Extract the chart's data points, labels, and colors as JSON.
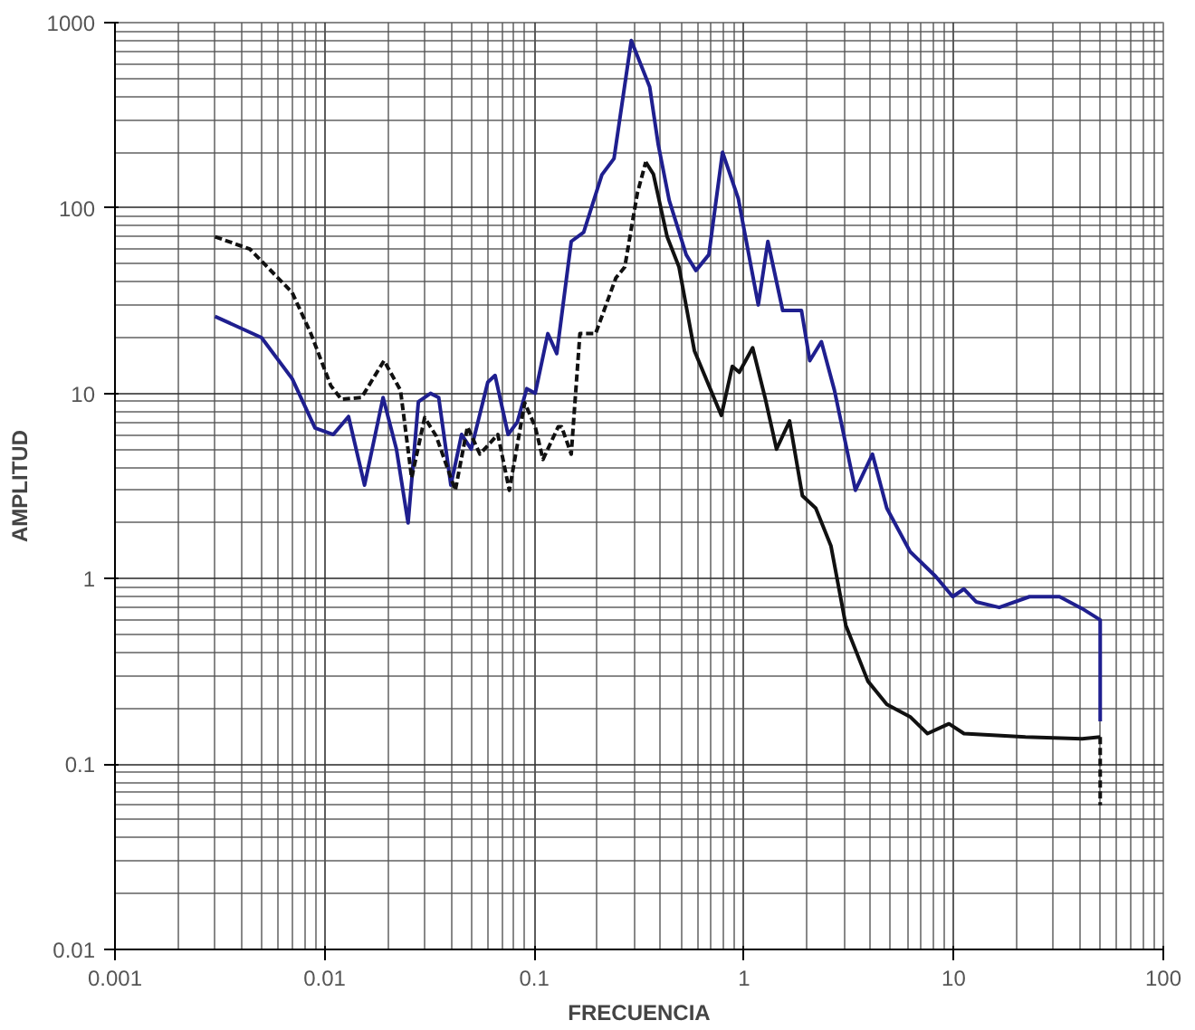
{
  "chart_data": {
    "type": "line",
    "xlabel": "FRECUENCIA",
    "ylabel": "AMPLITUD",
    "log": "xy",
    "grid": true,
    "xlim": [
      0.001,
      100
    ],
    "ylim": [
      0.01,
      1000
    ],
    "xticks": [
      0.001,
      0.01,
      0.1,
      1,
      10,
      100
    ],
    "yticks": [
      0.01,
      0.1,
      1,
      10,
      100,
      1000
    ],
    "series": [
      {
        "color": "#1f1f8f",
        "line_style": "solid",
        "x": [
          0.003,
          0.005,
          0.007,
          0.009,
          0.011,
          0.013,
          0.0155,
          0.019,
          0.022,
          0.025,
          0.028,
          0.032,
          0.035,
          0.04,
          0.045,
          0.05,
          0.06,
          0.065,
          0.075,
          0.083,
          0.092,
          0.101,
          0.116,
          0.128,
          0.15,
          0.172,
          0.21,
          0.24,
          0.29,
          0.355,
          0.39,
          0.44,
          0.53,
          0.59,
          0.68,
          0.79,
          0.94,
          1.17,
          1.3,
          1.53,
          1.88,
          2.06,
          2.34,
          2.7,
          3.4,
          4.1,
          4.8,
          6.2,
          8.2,
          9.9,
          11.2,
          12.8,
          16.5,
          23,
          32,
          41,
          50,
          50
        ],
        "values": [
          26,
          20,
          12,
          6.5,
          6,
          7.5,
          3.2,
          9.5,
          5,
          2,
          9,
          10,
          9.5,
          3.2,
          6,
          5,
          11.5,
          12.5,
          6,
          7,
          10.6,
          10,
          21,
          16.4,
          66,
          74,
          151,
          185,
          800,
          450,
          220,
          110,
          56,
          46,
          56,
          200,
          112,
          30,
          66,
          28,
          28,
          15,
          19,
          10.4,
          3,
          4.7,
          2.4,
          1.4,
          1.03,
          0.8,
          0.88,
          0.75,
          0.7,
          0.8,
          0.8,
          0.69,
          0.6,
          0.17
        ]
      },
      {
        "color": "#111111",
        "line_style": "dashed",
        "x": [
          0.003,
          0.0044,
          0.007,
          0.0086,
          0.0107,
          0.012,
          0.015,
          0.0192,
          0.023,
          0.026,
          0.03,
          0.034,
          0.042,
          0.048,
          0.055,
          0.067,
          0.076,
          0.09,
          0.101,
          0.11,
          0.13,
          0.135,
          0.15,
          0.165,
          0.196,
          0.245,
          0.27,
          0.31,
          0.34
        ],
        "values": [
          70,
          60,
          35,
          21,
          11,
          9.3,
          9.5,
          15,
          10.4,
          3.5,
          7.4,
          5.9,
          3,
          6.6,
          4.7,
          6,
          3,
          8.9,
          6.6,
          4.4,
          6.6,
          6.6,
          4.7,
          21,
          21,
          42,
          48,
          120,
          177
        ]
      },
      {
        "color": "#111111",
        "line_style": "solid",
        "x": [
          0.34,
          0.37,
          0.43,
          0.49,
          0.58,
          0.78,
          0.88,
          0.95,
          1.1,
          1.26,
          1.43,
          1.65,
          1.9,
          2.2,
          2.6,
          3.06,
          3.9,
          4.8,
          6.2,
          7.5,
          9.5,
          11.2,
          22,
          41,
          50
        ],
        "values": [
          177,
          152,
          70,
          48,
          17,
          7.6,
          14,
          13,
          17.6,
          9.5,
          5,
          7.1,
          2.8,
          2.4,
          1.5,
          0.56,
          0.28,
          0.21,
          0.18,
          0.146,
          0.165,
          0.146,
          0.14,
          0.137,
          0.14
        ]
      },
      {
        "color": "#111111",
        "line_style": "dashed",
        "x": [
          50,
          50
        ],
        "values": [
          0.14,
          0.06
        ]
      }
    ]
  }
}
